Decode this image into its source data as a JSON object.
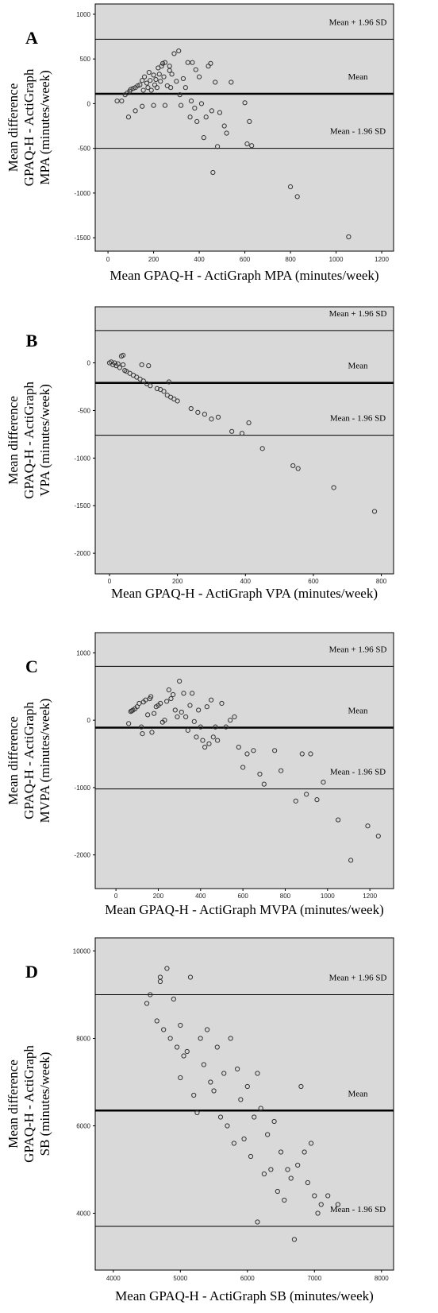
{
  "chart_data": [
    {
      "type": "scatter",
      "panel": "A",
      "xlabel": "Mean GPAQ-H - ActiGraph MPA (minutes/week)",
      "ylabel": [
        "Mean difference",
        "GPAQ-H - ActiGraph",
        "MPA (minutes/week)"
      ],
      "x": [
        40,
        60,
        75,
        85,
        95,
        100,
        110,
        120,
        130,
        140,
        150,
        155,
        160,
        170,
        175,
        180,
        185,
        190,
        200,
        205,
        210,
        215,
        220,
        225,
        230,
        235,
        240,
        245,
        250,
        260,
        270,
        275,
        280,
        290,
        300,
        310,
        315,
        320,
        330,
        340,
        350,
        360,
        365,
        370,
        380,
        385,
        390,
        400,
        410,
        420,
        430,
        440,
        450,
        455,
        460,
        470,
        480,
        490,
        510,
        520,
        540,
        600,
        610,
        620,
        630,
        800,
        830,
        1055,
        90,
        120,
        150,
        200,
        270,
        250
      ],
      "values": [
        30,
        30,
        100,
        120,
        140,
        160,
        170,
        180,
        200,
        210,
        260,
        150,
        300,
        230,
        180,
        350,
        260,
        150,
        320,
        210,
        270,
        180,
        400,
        330,
        250,
        420,
        450,
        300,
        460,
        200,
        370,
        180,
        330,
        560,
        250,
        590,
        100,
        -20,
        280,
        180,
        460,
        -150,
        30,
        460,
        -50,
        380,
        -200,
        300,
        0,
        -380,
        -150,
        420,
        450,
        -80,
        -770,
        240,
        -480,
        -100,
        -250,
        -330,
        240,
        10,
        -450,
        -200,
        -470,
        -930,
        -1040,
        -1490,
        -150,
        -80,
        -30,
        -20,
        420,
        -20
      ],
      "xlim": [
        -56,
        1252
      ],
      "ylim": [
        -1650,
        1115
      ],
      "xticks": [
        0,
        200,
        400,
        600,
        800,
        1000,
        1200
      ],
      "yticks": [
        1000,
        500,
        0,
        -500,
        -1000,
        -1500
      ],
      "reference_lines": [
        {
          "value": 720,
          "label": "Mean + 1.96 SD"
        },
        {
          "value": 110,
          "label": "Mean"
        },
        {
          "value": -500,
          "label": "Mean - 1.96 SD"
        }
      ],
      "color": "#333333",
      "background": "#d9d9d9"
    },
    {
      "type": "scatter",
      "panel": "B",
      "xlabel": "Mean GPAQ-H - ActiGraph VPA (minutes/week)",
      "ylabel": [
        "Mean difference",
        "GPAQ-H - ActiGraph",
        "VPA (minutes/week)"
      ],
      "x": [
        0,
        5,
        10,
        15,
        20,
        25,
        30,
        35,
        40,
        40,
        45,
        50,
        60,
        70,
        80,
        90,
        95,
        100,
        110,
        115,
        120,
        140,
        150,
        160,
        170,
        175,
        180,
        190,
        200,
        240,
        260,
        280,
        300,
        320,
        360,
        390,
        410,
        450,
        540,
        555,
        660,
        780
      ],
      "values": [
        0,
        10,
        -20,
        0,
        -30,
        -10,
        -50,
        70,
        80,
        -20,
        -80,
        -90,
        -110,
        -130,
        -150,
        -170,
        -20,
        -190,
        -220,
        -30,
        -240,
        -270,
        -280,
        -300,
        -340,
        -200,
        -360,
        -380,
        -400,
        -480,
        -520,
        -540,
        -590,
        -570,
        -720,
        -740,
        -630,
        -900,
        -1080,
        -1110,
        -1310,
        -1560
      ],
      "xlim": [
        -42,
        836
      ],
      "ylim": [
        -2216,
        589
      ],
      "xticks": [
        0,
        200,
        400,
        600,
        800
      ],
      "yticks": [
        0,
        -500,
        -1000,
        -1500,
        -2000
      ],
      "reference_lines": [
        {
          "value": 340,
          "label": "Mean + 1.96 SD"
        },
        {
          "value": -210,
          "label": "Mean"
        },
        {
          "value": -760,
          "label": "Mean - 1.96 SD"
        }
      ],
      "color": "#333333",
      "background": "#d9d9d9"
    },
    {
      "type": "scatter",
      "panel": "C",
      "xlabel": "Mean GPAQ-H - ActiGraph MVPA (minutes/week)",
      "ylabel": [
        "Mean difference",
        "GPAQ-H - ActiGraph",
        "MVPA (minutes/week)"
      ],
      "x": [
        60,
        70,
        75,
        80,
        90,
        100,
        110,
        120,
        125,
        130,
        140,
        150,
        160,
        165,
        170,
        180,
        190,
        200,
        210,
        220,
        230,
        240,
        250,
        260,
        270,
        280,
        290,
        300,
        310,
        320,
        330,
        340,
        350,
        360,
        370,
        380,
        390,
        400,
        410,
        420,
        430,
        440,
        450,
        460,
        470,
        480,
        500,
        520,
        540,
        560,
        580,
        600,
        620,
        650,
        680,
        700,
        750,
        780,
        850,
        880,
        900,
        920,
        950,
        980,
        1050,
        1110,
        1190,
        1240
      ],
      "values": [
        -50,
        130,
        140,
        150,
        170,
        200,
        250,
        -100,
        -200,
        270,
        300,
        80,
        320,
        350,
        -180,
        100,
        200,
        220,
        250,
        -30,
        0,
        280,
        450,
        320,
        380,
        150,
        50,
        580,
        120,
        400,
        50,
        -150,
        220,
        400,
        -20,
        -250,
        150,
        -100,
        -300,
        -400,
        200,
        -350,
        300,
        -250,
        -100,
        -300,
        250,
        -100,
        0,
        50,
        -400,
        -700,
        -500,
        -450,
        -800,
        -950,
        -450,
        -750,
        -1200,
        -500,
        -1100,
        -500,
        -1180,
        -920,
        -1480,
        -2080,
        -1570,
        -1720
      ],
      "xlim": [
        -98,
        1312
      ],
      "ylim": [
        -2500,
        1300
      ],
      "xticks": [
        0,
        200,
        400,
        600,
        800,
        1000,
        1200
      ],
      "yticks": [
        1000,
        0,
        -1000,
        -2000
      ],
      "reference_lines": [
        {
          "value": 800,
          "label": "Mean + 1.96 SD"
        },
        {
          "value": -110,
          "label": "Mean"
        },
        {
          "value": -1020,
          "label": "Mean - 1.96 SD"
        }
      ],
      "color": "#333333",
      "background": "#d9d9d9"
    },
    {
      "type": "scatter",
      "panel": "D",
      "xlabel": "Mean GPAQ-H - ActiGraph SB (minutes/week)",
      "ylabel": [
        "Mean difference",
        "GPAQ-H - ActiGraph",
        "SB (minutes/week)"
      ],
      "x": [
        4500,
        4550,
        4650,
        4700,
        4750,
        4800,
        4850,
        4900,
        4950,
        5000,
        5050,
        5100,
        5150,
        5200,
        5250,
        5300,
        5350,
        5400,
        5450,
        5500,
        5550,
        5600,
        5650,
        5700,
        5750,
        5800,
        5850,
        5900,
        5950,
        6000,
        6050,
        6100,
        6150,
        6150,
        6200,
        6250,
        6300,
        6350,
        6400,
        6450,
        6500,
        6550,
        6600,
        6650,
        6700,
        6750,
        6800,
        6850,
        6900,
        6950,
        7000,
        7050,
        7100,
        7200,
        7350,
        4700,
        5000
      ],
      "values": [
        8800,
        9000,
        8400,
        9400,
        8200,
        9600,
        8000,
        8900,
        7800,
        8300,
        7600,
        7700,
        9400,
        6700,
        6300,
        8000,
        7400,
        8200,
        7000,
        6800,
        7800,
        6200,
        7200,
        6000,
        8000,
        5600,
        7300,
        6600,
        5700,
        6900,
        5300,
        6200,
        3800,
        7200,
        6400,
        4900,
        5800,
        5000,
        6100,
        4500,
        5400,
        4300,
        5000,
        4800,
        3400,
        5100,
        6900,
        5400,
        4700,
        5600,
        4400,
        4000,
        4200,
        4400,
        4200,
        9300,
        7100
      ],
      "xlim": [
        3730,
        8180
      ],
      "ylim": [
        2700,
        10300
      ],
      "xticks": [
        4000,
        5000,
        6000,
        7000,
        8000
      ],
      "yticks": [
        10000,
        8000,
        6000,
        4000
      ],
      "reference_lines": [
        {
          "value": 9000,
          "label": "Mean + 1.96 SD"
        },
        {
          "value": 6350,
          "label": "Mean"
        },
        {
          "value": 3700,
          "label": "Mean - 1.96 SD"
        }
      ],
      "color": "#333333",
      "background": "#d9d9d9"
    }
  ]
}
